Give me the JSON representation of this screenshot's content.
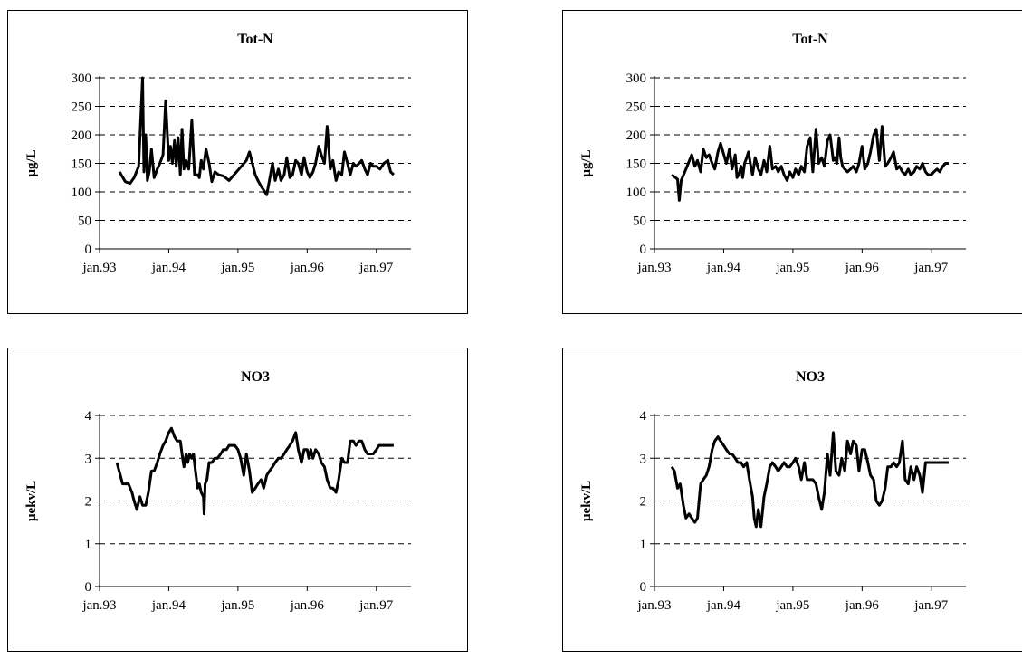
{
  "chart_data": [
    {
      "type": "line",
      "title": "Tot-N",
      "ylabel": "µg/L",
      "xlabel": "",
      "ylim": [
        0,
        300
      ],
      "yticks": [
        0,
        50,
        100,
        150,
        200,
        250,
        300
      ],
      "xlim": [
        "1993-01",
        "1997-07"
      ],
      "xticks": [
        "jan.93",
        "jan.94",
        "jan.95",
        "jan.96",
        "jan.97"
      ],
      "grid": "horizontal dashed",
      "series": [
        {
          "x": [
            "1993-04-15",
            "1993-05-15",
            "1993-06-10",
            "1993-07-01",
            "1993-07-25",
            "1993-08-15",
            "1993-08-22",
            "1993-09-01",
            "1993-09-10",
            "1993-09-20",
            "1993-10-01",
            "1993-10-15",
            "1993-11-01",
            "1993-11-15",
            "1993-12-01",
            "1993-12-15",
            "1994-01-01",
            "1994-01-10",
            "1994-01-20",
            "1994-02-01",
            "1994-02-10",
            "1994-02-20",
            "1994-03-01",
            "1994-03-10",
            "1994-03-20",
            "1994-04-01",
            "1994-04-15",
            "1994-05-01",
            "1994-05-15",
            "1994-06-01",
            "1994-06-10",
            "1994-06-20",
            "1994-07-01",
            "1994-07-15",
            "1994-08-01",
            "1994-08-15",
            "1994-09-01",
            "1994-09-20",
            "1994-10-15",
            "1994-11-15",
            "1995-02-15",
            "1995-03-01",
            "1995-04-01",
            "1995-04-15",
            "1995-05-01",
            "1995-06-01",
            "1995-07-01",
            "1995-07-15",
            "1995-08-01",
            "1995-08-15",
            "1995-09-01",
            "1995-09-15",
            "1995-10-01",
            "1995-10-15",
            "1995-11-01",
            "1995-11-15",
            "1995-12-01",
            "1995-12-15",
            "1996-01-01",
            "1996-01-15",
            "1996-02-01",
            "1996-02-15",
            "1996-03-01",
            "1996-03-15",
            "1996-04-01",
            "1996-04-15",
            "1996-05-01",
            "1996-05-15",
            "1996-06-01",
            "1996-06-15",
            "1996-07-01",
            "1996-07-15",
            "1996-08-01",
            "1996-08-15",
            "1996-09-01",
            "1996-09-15",
            "1996-10-01",
            "1996-10-15",
            "1996-11-01",
            "1996-11-15",
            "1996-12-01",
            "1996-12-15",
            "1997-01-01",
            "1997-01-20",
            "1997-02-10",
            "1997-03-01",
            "1997-03-15",
            "1997-04-01"
          ],
          "y": [
            135,
            118,
            115,
            125,
            145,
            300,
            135,
            200,
            120,
            135,
            175,
            125,
            140,
            150,
            165,
            260,
            155,
            180,
            150,
            190,
            145,
            195,
            130,
            210,
            140,
            155,
            140,
            225,
            130,
            130,
            125,
            155,
            140,
            175,
            150,
            118,
            135,
            130,
            128,
            120,
            155,
            170,
            130,
            120,
            110,
            95,
            150,
            120,
            140,
            120,
            130,
            160,
            125,
            130,
            155,
            150,
            130,
            160,
            135,
            125,
            135,
            150,
            180,
            165,
            150,
            215,
            140,
            155,
            120,
            135,
            130,
            170,
            150,
            130,
            150,
            145,
            150,
            155,
            140,
            130,
            150,
            145,
            145,
            140,
            150,
            155,
            135,
            130
          ]
        }
      ]
    },
    {
      "type": "line",
      "title": "Tot-N",
      "ylabel": "µg/L",
      "xlabel": "",
      "ylim": [
        0,
        300
      ],
      "yticks": [
        0,
        50,
        100,
        150,
        200,
        250,
        300
      ],
      "xlim": [
        "1993-01",
        "1997-07"
      ],
      "xticks": [
        "jan.93",
        "jan.94",
        "jan.95",
        "jan.96",
        "jan.97"
      ],
      "grid": "horizontal dashed",
      "series": [
        {
          "x": [
            "1993-04-01",
            "1993-05-01",
            "1993-05-10",
            "1993-05-20",
            "1993-06-15",
            "1993-07-15",
            "1993-08-01",
            "1993-08-15",
            "1993-09-01",
            "1993-09-15",
            "1993-10-01",
            "1993-10-15",
            "1993-11-01",
            "1993-11-15",
            "1993-12-01",
            "1993-12-15",
            "1994-01-15",
            "1994-02-01",
            "1994-02-15",
            "1994-03-01",
            "1994-03-10",
            "1994-03-20",
            "1994-04-01",
            "1994-04-10",
            "1994-04-20",
            "1994-05-01",
            "1994-05-10",
            "1994-05-20",
            "1994-06-01",
            "1994-06-15",
            "1994-07-01",
            "1994-07-15",
            "1994-08-01",
            "1994-08-15",
            "1994-09-01",
            "1994-09-15",
            "1994-10-01",
            "1994-10-15",
            "1994-11-01",
            "1994-11-15",
            "1994-12-01",
            "1994-12-15",
            "1995-01-01",
            "1995-01-15",
            "1995-02-01",
            "1995-02-15",
            "1995-03-01",
            "1995-03-15",
            "1995-04-01",
            "1995-04-15",
            "1995-05-01",
            "1995-05-15",
            "1995-06-01",
            "1995-06-15",
            "1995-07-01",
            "1995-07-15",
            "1995-08-01",
            "1995-08-10",
            "1995-08-20",
            "1995-09-01",
            "1995-09-10",
            "1995-09-20",
            "1995-10-01",
            "1995-10-15",
            "1995-11-01",
            "1995-11-15",
            "1995-12-01",
            "1995-12-15",
            "1996-01-01",
            "1996-01-15",
            "1996-02-01",
            "1996-02-15",
            "1996-03-01",
            "1996-03-15",
            "1996-04-01",
            "1996-04-15",
            "1996-05-01",
            "1996-05-15",
            "1996-06-01",
            "1996-06-15",
            "1996-07-01",
            "1996-07-15",
            "1996-08-01",
            "1996-08-15",
            "1996-09-01",
            "1996-09-15",
            "1996-10-01",
            "1996-10-15",
            "1996-11-01",
            "1996-11-15",
            "1996-12-01",
            "1996-12-15",
            "1997-01-01",
            "1997-01-15",
            "1997-02-01",
            "1997-02-15",
            "1997-03-01",
            "1997-03-15",
            "1997-04-01"
          ],
          "y": [
            130,
            122,
            85,
            120,
            140,
            165,
            145,
            155,
            135,
            175,
            160,
            165,
            150,
            140,
            170,
            185,
            150,
            175,
            140,
            165,
            125,
            130,
            145,
            125,
            150,
            160,
            170,
            150,
            130,
            160,
            140,
            130,
            155,
            135,
            180,
            140,
            145,
            135,
            145,
            130,
            120,
            135,
            125,
            140,
            130,
            145,
            135,
            180,
            195,
            135,
            210,
            150,
            160,
            145,
            190,
            200,
            155,
            160,
            150,
            195,
            160,
            145,
            140,
            135,
            140,
            145,
            135,
            150,
            180,
            140,
            150,
            170,
            200,
            210,
            155,
            215,
            145,
            150,
            160,
            170,
            140,
            145,
            135,
            130,
            140,
            130,
            135,
            145,
            140,
            150,
            135,
            130,
            130,
            135,
            140,
            135,
            145,
            150,
            150
          ]
        }
      ]
    },
    {
      "type": "line",
      "title": "NO3",
      "ylabel": "µekv/L",
      "xlabel": "",
      "ylim": [
        0,
        4
      ],
      "yticks": [
        0,
        1,
        2,
        3,
        4
      ],
      "xlim": [
        "1993-01",
        "1997-07"
      ],
      "xticks": [
        "jan.93",
        "jan.94",
        "jan.95",
        "jan.96",
        "jan.97"
      ],
      "grid": "horizontal dashed",
      "series": [
        {
          "x": [
            "1993-04-01",
            "1993-05-01",
            "1993-06-01",
            "1993-06-20",
            "1993-07-01",
            "1993-07-15",
            "1993-08-01",
            "1993-08-15",
            "1993-09-01",
            "1993-09-15",
            "1993-10-01",
            "1993-10-15",
            "1993-11-01",
            "1993-11-15",
            "1993-12-01",
            "1993-12-15",
            "1994-01-01",
            "1994-01-15",
            "1994-02-01",
            "1994-02-15",
            "1994-03-01",
            "1994-03-10",
            "1994-03-20",
            "1994-04-01",
            "1994-04-10",
            "1994-04-20",
            "1994-05-01",
            "1994-05-10",
            "1994-05-20",
            "1994-06-01",
            "1994-06-10",
            "1994-06-20",
            "1994-07-01",
            "1994-07-05",
            "1994-07-10",
            "1994-07-20",
            "1994-08-01",
            "1994-08-15",
            "1994-09-01",
            "1994-09-15",
            "1994-10-01",
            "1994-10-15",
            "1994-11-01",
            "1994-11-15",
            "1994-12-01",
            "1994-12-15",
            "1995-01-01",
            "1995-01-15",
            "1995-02-01",
            "1995-02-15",
            "1995-03-01",
            "1995-03-15",
            "1995-04-01",
            "1995-04-15",
            "1995-05-01",
            "1995-05-15",
            "1995-06-01",
            "1995-06-15",
            "1995-07-01",
            "1995-07-15",
            "1995-08-01",
            "1995-08-15",
            "1995-09-01",
            "1995-09-15",
            "1995-10-01",
            "1995-10-15",
            "1995-11-01",
            "1995-11-15",
            "1995-12-01",
            "1995-12-15",
            "1996-01-01",
            "1996-01-10",
            "1996-01-20",
            "1996-02-01",
            "1996-02-15",
            "1996-03-01",
            "1996-03-15",
            "1996-04-01",
            "1996-04-15",
            "1996-05-01",
            "1996-05-15",
            "1996-06-01",
            "1996-06-15",
            "1996-07-01",
            "1996-07-15",
            "1996-08-01",
            "1996-08-15",
            "1996-09-01",
            "1996-09-15",
            "1996-10-01",
            "1996-10-15",
            "1996-11-01",
            "1996-11-15",
            "1996-12-01",
            "1996-12-15",
            "1997-01-01",
            "1997-01-15",
            "1997-02-01",
            "1997-02-15",
            "1997-03-01",
            "1997-03-15",
            "1997-04-01"
          ],
          "y": [
            2.9,
            2.4,
            2.4,
            2.2,
            2.0,
            1.8,
            2.1,
            1.9,
            1.9,
            2.2,
            2.7,
            2.7,
            2.9,
            3.1,
            3.3,
            3.4,
            3.6,
            3.7,
            3.5,
            3.4,
            3.4,
            3.1,
            2.8,
            3.1,
            2.9,
            3.1,
            3.0,
            3.1,
            2.7,
            2.3,
            2.4,
            2.2,
            2.1,
            1.7,
            2.4,
            2.5,
            2.9,
            2.9,
            3.0,
            3.0,
            3.1,
            3.2,
            3.2,
            3.3,
            3.3,
            3.3,
            3.2,
            3.0,
            2.6,
            3.1,
            2.7,
            2.2,
            2.3,
            2.4,
            2.5,
            2.3,
            2.6,
            2.7,
            2.8,
            2.9,
            3.0,
            3.0,
            3.1,
            3.2,
            3.3,
            3.4,
            3.6,
            3.2,
            2.9,
            3.2,
            3.2,
            3.0,
            3.2,
            3.0,
            3.2,
            3.1,
            2.9,
            2.8,
            2.5,
            2.3,
            2.3,
            2.2,
            2.5,
            3.0,
            2.9,
            2.9,
            3.4,
            3.4,
            3.3,
            3.4,
            3.4,
            3.2,
            3.1,
            3.1,
            3.1,
            3.2,
            3.3,
            3.3,
            3.3,
            3.3,
            3.3,
            3.3
          ]
        }
      ]
    },
    {
      "type": "line",
      "title": "NO3",
      "ylabel": "µekv/L",
      "xlabel": "",
      "ylim": [
        0,
        4
      ],
      "yticks": [
        0,
        1,
        2,
        3,
        4
      ],
      "xlim": [
        "1993-01",
        "1997-07"
      ],
      "xticks": [
        "jan.93",
        "jan.94",
        "jan.95",
        "jan.96",
        "jan.97"
      ],
      "grid": "horizontal dashed",
      "series": [
        {
          "x": [
            "1993-04-01",
            "1993-04-15",
            "1993-05-01",
            "1993-05-15",
            "1993-06-01",
            "1993-06-15",
            "1993-07-01",
            "1993-07-15",
            "1993-08-01",
            "1993-08-15",
            "1993-09-01",
            "1993-09-15",
            "1993-10-01",
            "1993-10-15",
            "1993-11-01",
            "1993-11-15",
            "1993-12-01",
            "1993-12-15",
            "1994-01-01",
            "1994-01-15",
            "1994-02-01",
            "1994-02-15",
            "1994-03-01",
            "1994-03-15",
            "1994-04-01",
            "1994-04-15",
            "1994-05-01",
            "1994-05-15",
            "1994-06-01",
            "1994-06-10",
            "1994-06-20",
            "1994-07-01",
            "1994-07-15",
            "1994-08-01",
            "1994-08-15",
            "1994-09-01",
            "1994-09-15",
            "1994-10-01",
            "1994-10-15",
            "1994-11-01",
            "1994-11-15",
            "1994-12-01",
            "1994-12-15",
            "1995-01-01",
            "1995-01-15",
            "1995-02-01",
            "1995-02-15",
            "1995-03-01",
            "1995-03-15",
            "1995-04-01",
            "1995-04-15",
            "1995-05-01",
            "1995-05-15",
            "1995-06-01",
            "1995-06-15",
            "1995-07-01",
            "1995-07-15",
            "1995-08-01",
            "1995-08-15",
            "1995-09-01",
            "1995-09-15",
            "1995-10-01",
            "1995-10-15",
            "1995-11-01",
            "1995-11-15",
            "1995-12-01",
            "1995-12-15",
            "1996-01-01",
            "1996-01-15",
            "1996-02-01",
            "1996-02-15",
            "1996-03-01",
            "1996-03-15",
            "1996-04-01",
            "1996-04-15",
            "1996-05-01",
            "1996-05-15",
            "1996-06-01",
            "1996-06-15",
            "1996-07-01",
            "1996-07-15",
            "1996-08-01",
            "1996-08-15",
            "1996-09-01",
            "1996-09-15",
            "1996-10-01",
            "1996-10-15",
            "1996-11-01",
            "1996-11-15",
            "1996-12-01",
            "1996-12-15",
            "1997-01-01",
            "1997-01-15",
            "1997-02-01",
            "1997-02-15",
            "1997-03-01",
            "1997-03-15",
            "1997-04-01"
          ],
          "y": [
            2.8,
            2.7,
            2.3,
            2.4,
            1.9,
            1.6,
            1.7,
            1.6,
            1.5,
            1.6,
            2.4,
            2.5,
            2.6,
            2.8,
            3.2,
            3.4,
            3.5,
            3.4,
            3.3,
            3.2,
            3.1,
            3.1,
            3.0,
            2.9,
            2.9,
            2.8,
            2.9,
            2.5,
            2.1,
            1.6,
            1.4,
            1.8,
            1.4,
            2.1,
            2.4,
            2.8,
            2.9,
            2.8,
            2.7,
            2.8,
            2.9,
            2.8,
            2.8,
            2.9,
            3.0,
            2.8,
            2.5,
            2.9,
            2.5,
            2.5,
            2.5,
            2.4,
            2.1,
            1.8,
            2.2,
            3.1,
            2.6,
            3.6,
            2.7,
            2.6,
            3.0,
            2.7,
            3.4,
            3.1,
            3.4,
            3.3,
            2.7,
            3.2,
            3.2,
            2.9,
            2.6,
            2.5,
            2.0,
            1.9,
            2.0,
            2.3,
            2.8,
            2.8,
            2.9,
            2.8,
            2.9,
            3.4,
            2.5,
            2.4,
            2.8,
            2.5,
            2.8,
            2.6,
            2.2,
            2.9,
            2.9,
            2.9,
            2.9,
            2.9,
            2.9,
            2.9,
            2.9,
            2.9
          ]
        }
      ]
    }
  ]
}
